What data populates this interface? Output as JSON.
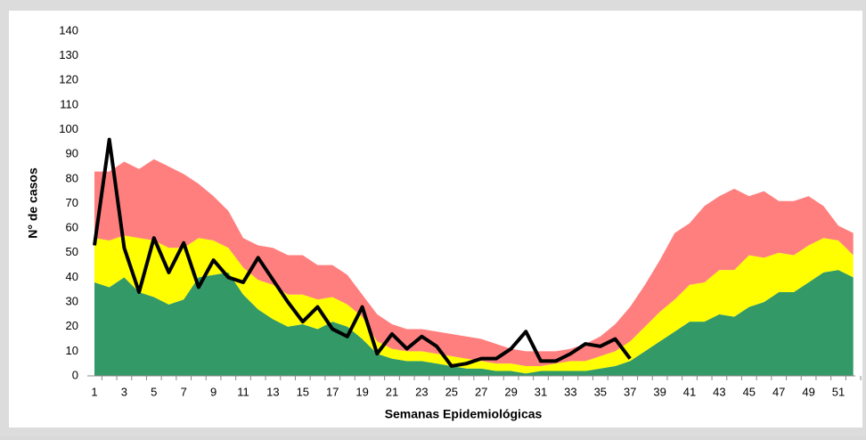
{
  "chart_data": {
    "type": "area",
    "stacked": true,
    "x_label": "Semanas Epidemiológicas",
    "y_label": "N° de casos",
    "categories": [
      1,
      null,
      3,
      null,
      5,
      null,
      7,
      null,
      9,
      null,
      11,
      null,
      13,
      null,
      15,
      null,
      17,
      null,
      19,
      null,
      21,
      null,
      23,
      null,
      25,
      null,
      27,
      null,
      29,
      null,
      31,
      null,
      33,
      null,
      35,
      null,
      37,
      null,
      39,
      null,
      41,
      null,
      43,
      null,
      45,
      null,
      47,
      null,
      49,
      null,
      51,
      null
    ],
    "series": [
      {
        "color": "#339966",
        "values": [
          38,
          36,
          40,
          34,
          32,
          29,
          31,
          40,
          41,
          42,
          33,
          27,
          23,
          20,
          21,
          19,
          22,
          20,
          15,
          9,
          7,
          6,
          6,
          5,
          4,
          3,
          3,
          2,
          2,
          1,
          2,
          2,
          2,
          2,
          3,
          4,
          6,
          10,
          14,
          18,
          22,
          22,
          25,
          24,
          28,
          30,
          34,
          34,
          38,
          42,
          43,
          40
        ]
      },
      {
        "color": "#ffff00",
        "values": [
          18,
          19,
          17,
          22,
          23,
          23,
          21,
          16,
          14,
          10,
          11,
          12,
          14,
          13,
          12,
          12,
          10,
          9,
          9,
          5,
          4,
          4,
          4,
          4,
          4,
          4,
          3,
          3,
          3,
          3,
          2,
          3,
          4,
          4,
          5,
          6,
          8,
          10,
          12,
          13,
          15,
          16,
          18,
          19,
          21,
          18,
          16,
          15,
          15,
          14,
          12,
          9
        ]
      },
      {
        "color": "#ff7f7f",
        "values": [
          27,
          28,
          30,
          28,
          33,
          33,
          30,
          22,
          18,
          15,
          12,
          14,
          15,
          16,
          16,
          14,
          13,
          12,
          9,
          11,
          10,
          9,
          9,
          9,
          9,
          9,
          9,
          8,
          6,
          6,
          6,
          5,
          5,
          7,
          8,
          11,
          14,
          17,
          21,
          27,
          25,
          31,
          30,
          33,
          24,
          27,
          21,
          22,
          20,
          13,
          6,
          9
        ]
      },
      {
        "type": "line",
        "color": "#000000",
        "values": [
          53,
          96,
          52,
          34,
          56,
          42,
          54,
          36,
          47,
          40,
          38,
          48,
          39,
          30,
          22,
          28,
          19,
          16,
          28,
          9,
          17,
          11,
          16,
          12,
          4,
          5,
          7,
          7,
          11,
          18,
          6,
          6,
          9,
          13,
          12,
          15,
          7,
          null,
          null,
          null,
          null,
          null,
          null,
          null,
          null,
          null,
          null,
          null,
          null,
          null,
          null,
          null
        ]
      }
    ],
    "ylim": [
      0,
      140
    ],
    "yticks": [
      0,
      10,
      20,
      30,
      40,
      50,
      60,
      70,
      80,
      90,
      100,
      110,
      120,
      130,
      140
    ],
    "grid": false
  }
}
